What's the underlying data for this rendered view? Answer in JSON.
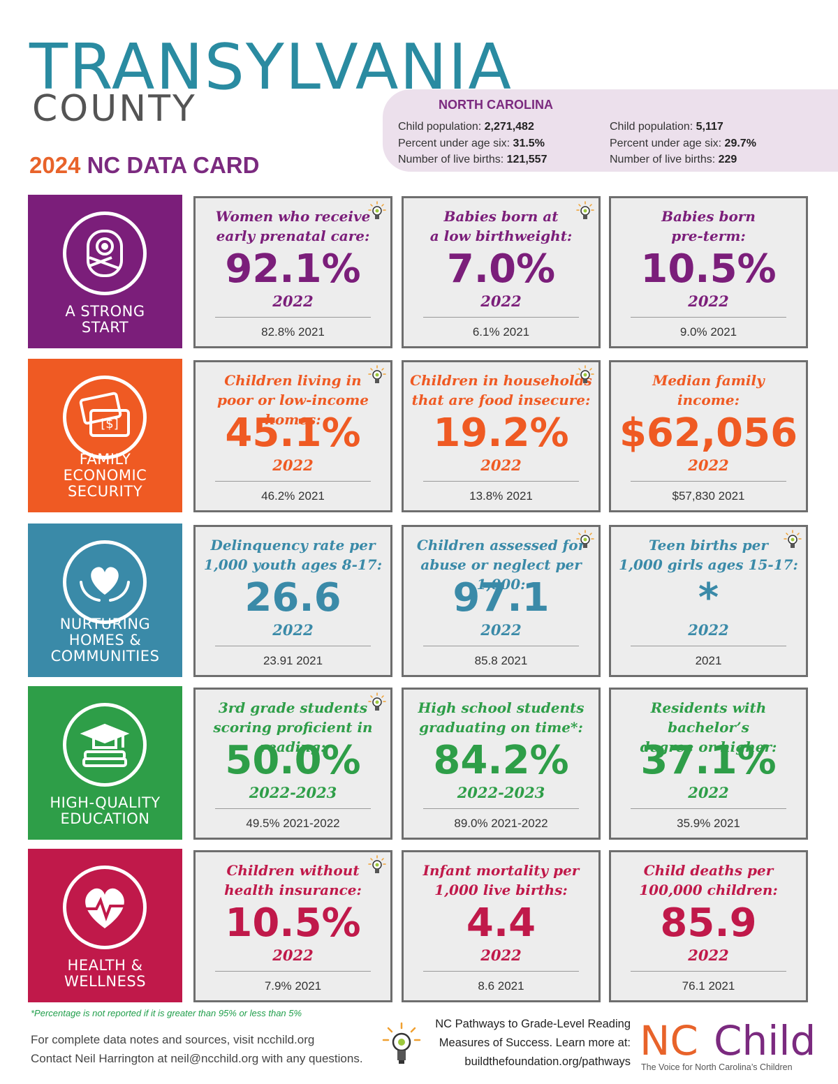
{
  "header": {
    "title": "TRANSYLVANIA",
    "subtitle": "COUNTY",
    "datacard_year": "2024",
    "datacard_label": "NC DATA CARD"
  },
  "nc_panel": {
    "label": "NORTH CAROLINA",
    "state": {
      "child_population_label": "Child population:",
      "child_population": "2,271,482",
      "under_six_label": "Percent under age six:",
      "under_six": "31.5%",
      "live_births_label": "Number of live births:",
      "live_births": "121,557"
    },
    "county": {
      "child_population_label": "Child population:",
      "child_population": "5,117",
      "under_six_label": "Percent under age six:",
      "under_six": "29.7%",
      "live_births_label": "Number of live births:",
      "live_births": "229"
    }
  },
  "colors": {
    "strong_start": "#7b1e7a",
    "economic": "#ef5a23",
    "nurturing": "#3a8aa8",
    "education": "#2e9e48",
    "health": "#c0194a"
  },
  "rows": [
    {
      "label": "A STRONG\nSTART",
      "icon": "baby-icon",
      "cards": [
        {
          "caption": "Women who receive\nearly prenatal care:",
          "value": "92.1%",
          "year": "2022",
          "prev": "82.8%  2021",
          "bulb": true
        },
        {
          "caption": "Babies born at\na low birthweight:",
          "value": "7.0%",
          "year": "2022",
          "prev": "6.1%  2021",
          "bulb": true
        },
        {
          "caption": "Babies born\npre-term:",
          "value": "10.5%",
          "year": "2022",
          "prev": "9.0%  2021",
          "bulb": false
        }
      ]
    },
    {
      "label": "FAMILY\nECONOMIC\nSECURITY",
      "icon": "money-icon",
      "cards": [
        {
          "caption": "Children living in\npoor or low-income homes:",
          "value": "45.1%",
          "year": "2022",
          "prev": "46.2%  2021",
          "bulb": true
        },
        {
          "caption": "Children in households\nthat are food insecure:",
          "value": "19.2%",
          "year": "2022",
          "prev": "13.8%  2021",
          "bulb": true
        },
        {
          "caption": "Median family\nincome:",
          "value": "$62,056",
          "year": "2022",
          "prev": "$57,830  2021",
          "bulb": false
        }
      ]
    },
    {
      "label": "NURTURING\nHOMES &\nCOMMUNITIES",
      "icon": "heart-hands-icon",
      "cards": [
        {
          "caption": "Delinquency rate per\n1,000 youth ages 8-17:",
          "value": "26.6",
          "year": "2022",
          "prev": "23.91  2021",
          "bulb": false
        },
        {
          "caption": "Children assessed for\nabuse or neglect per 1,000:",
          "value": "97.1",
          "year": "2022",
          "prev": "85.8  2021",
          "bulb": true
        },
        {
          "caption": "Teen births per\n1,000 girls ages 15-17:",
          "value": "*",
          "year": "2022",
          "prev": "2021",
          "bulb": true
        }
      ]
    },
    {
      "label": "HIGH-QUALITY\nEDUCATION",
      "icon": "graduation-cap-icon",
      "cards": [
        {
          "caption": "3rd grade students\nscoring proficient in reading:",
          "value": "50.0%",
          "year": "2022-2023",
          "prev": "49.5%  2021-2022",
          "bulb": true
        },
        {
          "caption": "High school students\ngraduating on time*:",
          "value": "84.2%",
          "year": "2022-2023",
          "prev": "89.0%  2021-2022",
          "bulb": false
        },
        {
          "caption": "Residents with bachelor’s\ndegree or higher:",
          "value": "37.1%",
          "year": "2022",
          "prev": "35.9%  2021",
          "bulb": false
        }
      ]
    },
    {
      "label": "HEALTH &\nWELLNESS",
      "icon": "heartbeat-icon",
      "cards": [
        {
          "caption": "Children without\nhealth insurance:",
          "value": "10.5%",
          "year": "2022",
          "prev": "7.9%  2021",
          "bulb": true
        },
        {
          "caption": "Infant mortality per\n1,000 live births:",
          "value": "4.4",
          "year": "2022",
          "prev": "8.6  2021",
          "bulb": false
        },
        {
          "caption": "Child deaths per\n100,000 children:",
          "value": "85.9",
          "year": "2022",
          "prev": "76.1  2021",
          "bulb": false
        }
      ]
    }
  ],
  "footer": {
    "footnote": "*Percentage is not reported if it is greater than 95% or less than 5%",
    "data_notes": "For complete data notes and sources, visit ncchild.org",
    "contact": "Contact Neil Harrington at neil@ncchild.org with any questions.",
    "pathways_line1": "NC Pathways to Grade-Level Reading",
    "pathways_line2": "Measures of Success. Learn more at:",
    "pathways_line3": "buildthefoundation.org/pathways",
    "logo_nc": "NC",
    "logo_child": "Child",
    "logo_tagline": "The Voice for North Carolina’s Children"
  }
}
